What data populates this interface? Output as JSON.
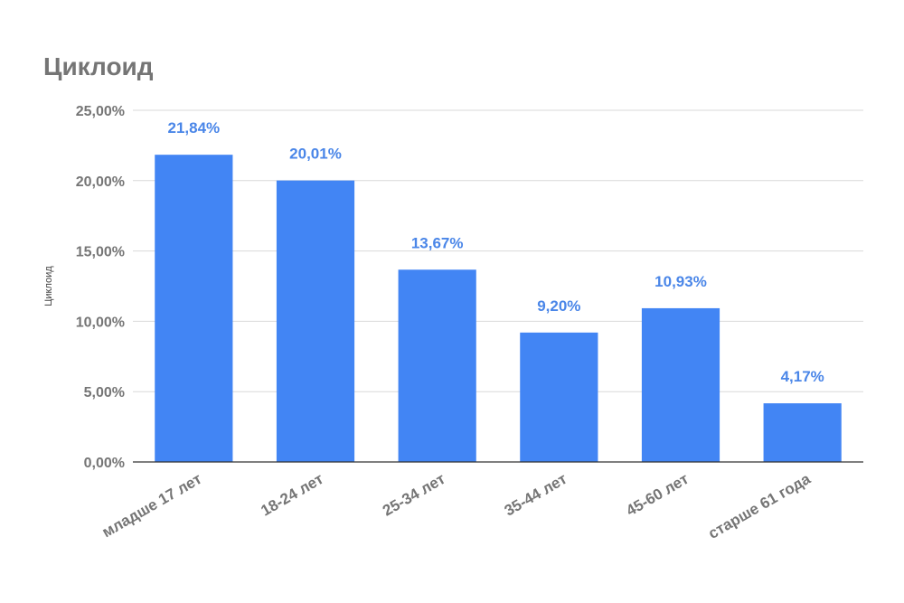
{
  "chart_data": {
    "type": "bar",
    "title": "Циклоид",
    "xlabel": "",
    "ylabel": "Циклоид",
    "categories": [
      "младше 17 лет",
      "18-24 лет",
      "25-34 лет",
      "35-44 лет",
      "45-60 лет",
      "старше 61 года"
    ],
    "values": [
      21.84,
      20.01,
      13.67,
      9.2,
      10.93,
      4.17
    ],
    "data_labels": [
      "21,84%",
      "20,01%",
      "13,67%",
      "9,20%",
      "10,93%",
      "4,17%"
    ],
    "ylim": [
      0,
      25
    ],
    "yticks": [
      0,
      5,
      10,
      15,
      20,
      25
    ],
    "ytick_labels": [
      "0,00%",
      "5,00%",
      "10,00%",
      "15,00%",
      "20,00%",
      "25,00%"
    ],
    "grid": true,
    "legend": "none",
    "colors": {
      "bar": "#4285f4",
      "data_label": "#4a86e8",
      "grid": "#d9d9d9",
      "axis": "#333333",
      "text": "#757575"
    }
  }
}
